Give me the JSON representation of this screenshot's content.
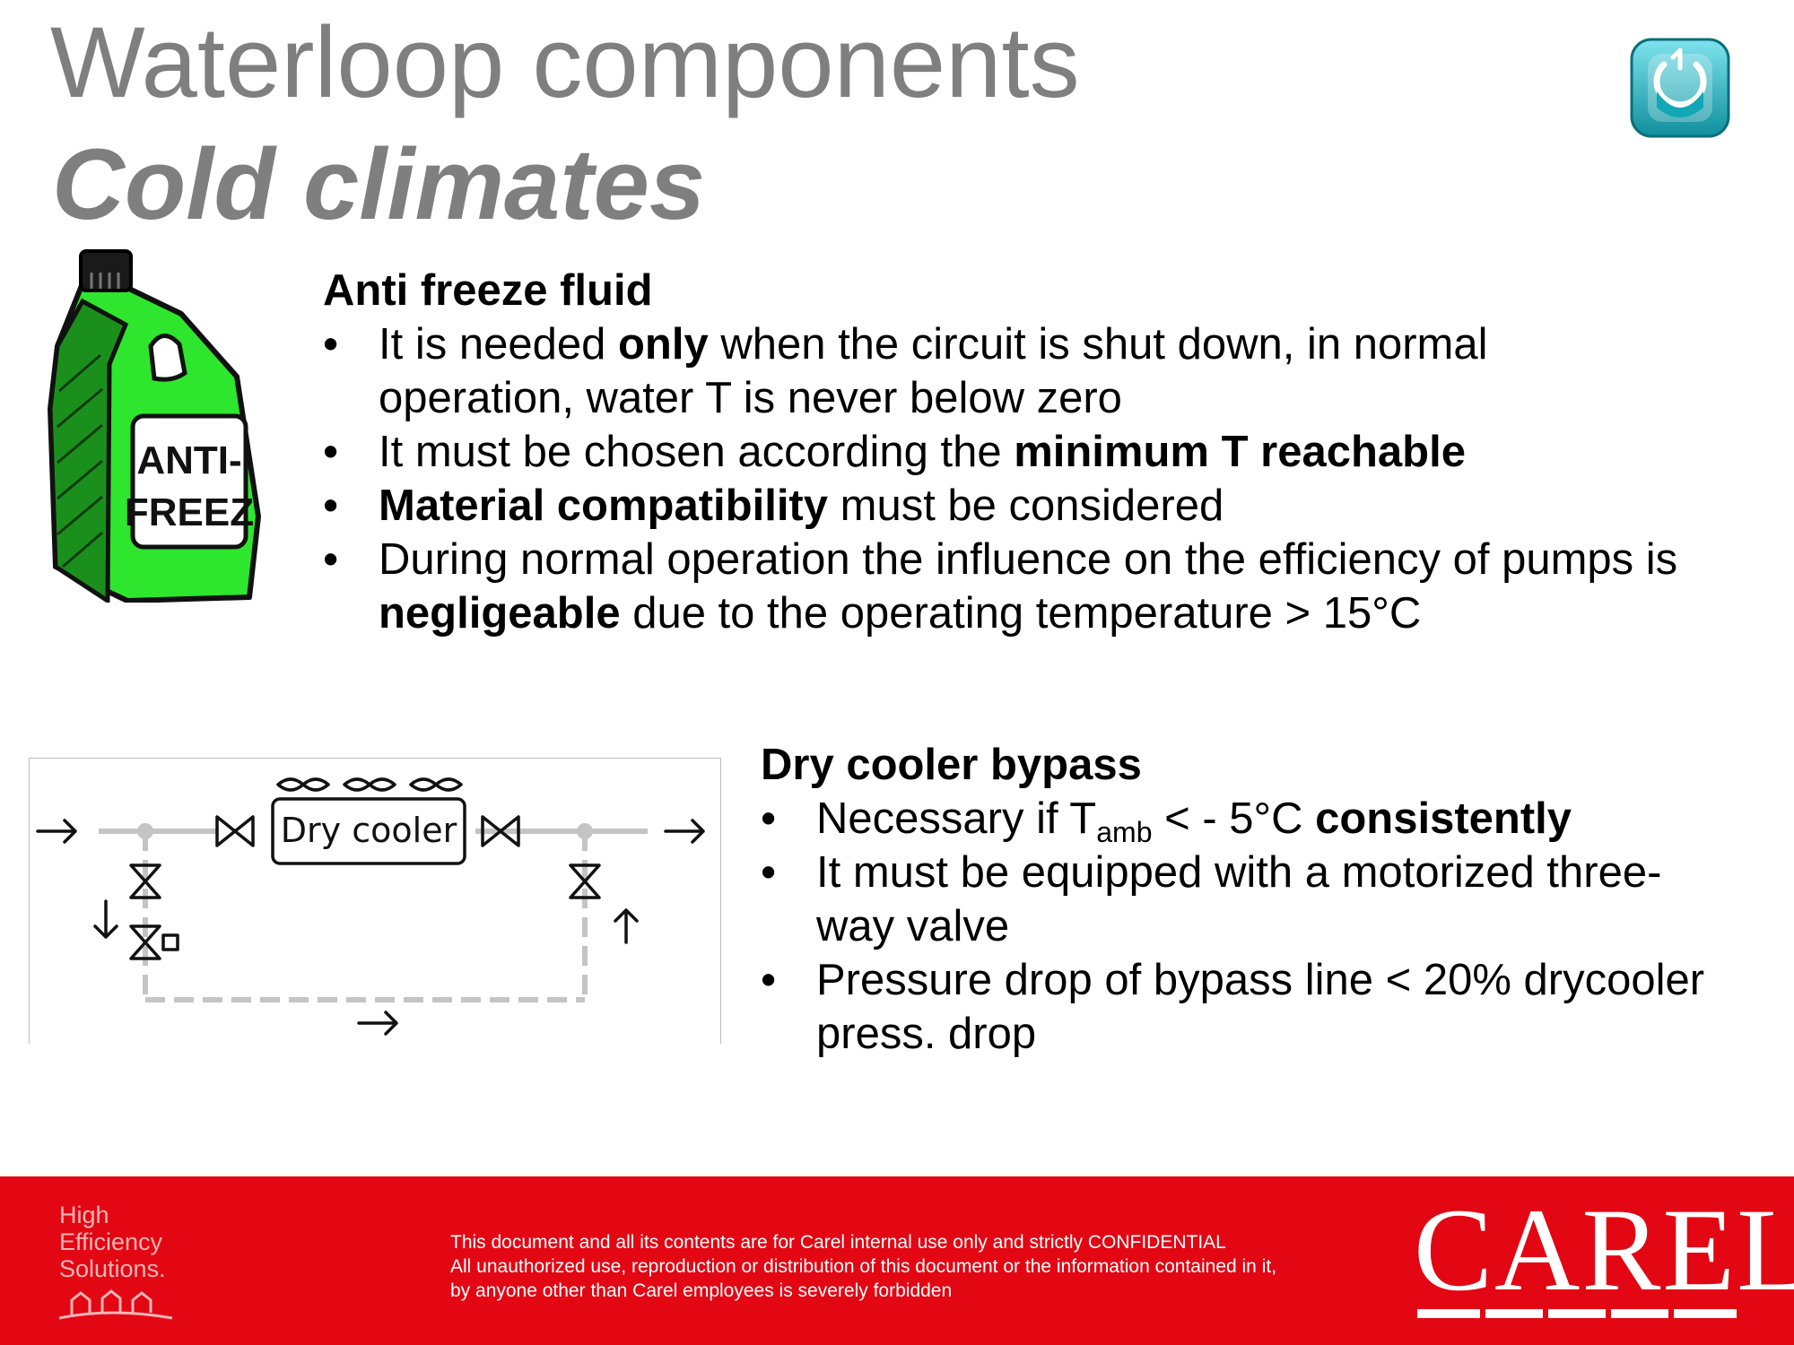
{
  "slide": {
    "title": "Waterloop components",
    "subtitle": "Cold climates"
  },
  "antifreeze": {
    "heading": "Anti freeze fluid",
    "bottle_label_line1": "ANTI-",
    "bottle_label_line2": "FREEZ",
    "items": [
      {
        "pre": "It is needed ",
        "bold": "only",
        "post": " when the circuit is shut down, in normal operation, water T is never below zero"
      },
      {
        "pre": "It must be chosen according the ",
        "bold": "minimum T reachable",
        "post": ""
      },
      {
        "pre": "",
        "bold": "Material compatibility",
        "post": " must be considered"
      },
      {
        "pre": "During normal operation the influence on the efficiency of pumps is ",
        "bold": "negligeable",
        "post": " due to the operating temperature > 15°C"
      }
    ]
  },
  "bypass": {
    "heading": "Dry cooler bypass",
    "item1": {
      "pre": "Necessary if T",
      "sub": "amb",
      "mid": " < - 5°C ",
      "bold": "consistently"
    },
    "item2": "It must be equipped with a motorized three-way valve",
    "item3": "Pressure drop of bypass line < 20% drycooler press. drop",
    "diagram_label": "Dry cooler"
  },
  "footer": {
    "logo_line1": "High",
    "logo_line2": "Efficiency",
    "logo_line3": "Solutions.",
    "notice_line1": "This document and all its contents are for Carel internal use only and strictly  CONFIDENTIAL",
    "notice_line2": "All unauthorized use, reproduction or distribution of this document or the information contained in it,",
    "notice_line3": "by anyone other than Carel employees is severely forbidden",
    "brand": "CAREL"
  },
  "colors": {
    "title_gray": "#7f7f7f",
    "footer_red": "#e30613",
    "bottle_green": "#2ee62e",
    "nav_teal": "#22b8c8"
  }
}
